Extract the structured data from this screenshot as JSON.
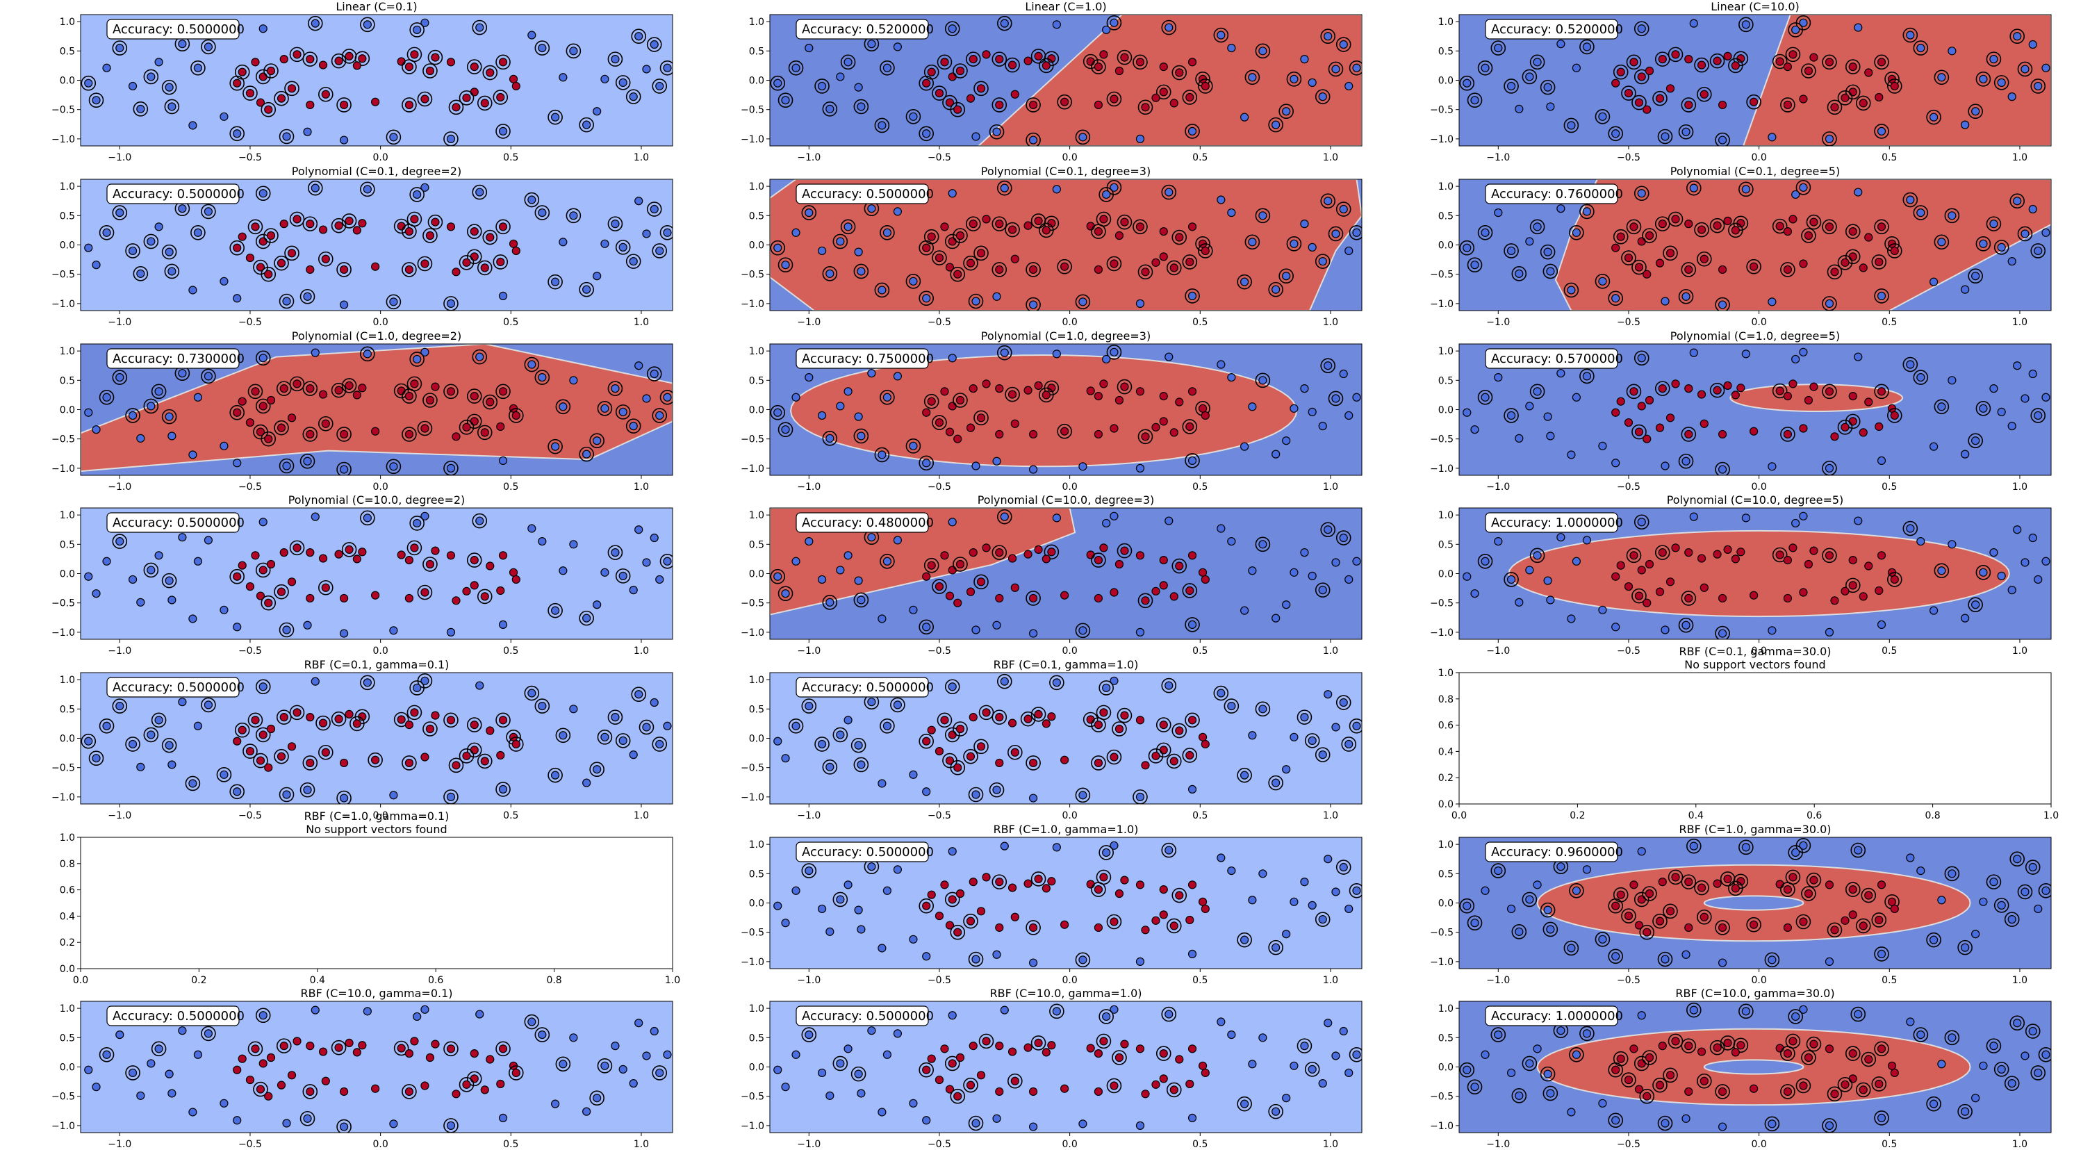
{
  "figure": {
    "colors": {
      "blue_region": "#6f89dd",
      "light_region": "#a3bcfb",
      "red_region": "#d5605a",
      "boundary": "#dddddd",
      "red_point": "#b40426",
      "blue_point": "#4a6ee0",
      "edge": "#000000"
    },
    "panel_ticks": {
      "x": [
        "−1.0",
        "−0.5",
        "0.0",
        "0.5",
        "1.0"
      ],
      "y": [
        "−1.0",
        "−0.5",
        "0.0",
        "0.5",
        "1.0"
      ],
      "empty_x": [
        "0.0",
        "0.2",
        "0.4",
        "0.6",
        "0.8",
        "1.0"
      ],
      "empty_y": [
        "0.0",
        "0.2",
        "0.4",
        "0.6",
        "0.8",
        "1.0"
      ]
    }
  },
  "chart_data": [
    {
      "type": "scatter",
      "title": "Linear (C=0.1)",
      "annotation": "Accuracy: 0.5000000",
      "xlim": [
        -1.15,
        1.12
      ],
      "ylim": [
        -1.12,
        1.12
      ],
      "region": "light",
      "support_vectors": "many"
    },
    {
      "type": "scatter",
      "title": "Linear (C=1.0)",
      "annotation": "Accuracy: 0.5200000",
      "xlim": [
        -1.15,
        1.12
      ],
      "ylim": [
        -1.12,
        1.12
      ],
      "region": "linear-1",
      "support_vectors": "many"
    },
    {
      "type": "scatter",
      "title": "Linear (C=10.0)",
      "annotation": "Accuracy: 0.5200000",
      "xlim": [
        -1.15,
        1.12
      ],
      "ylim": [
        -1.12,
        1.12
      ],
      "region": "linear-10",
      "support_vectors": "many"
    },
    {
      "type": "scatter",
      "title": "Polynomial (C=0.1, degree=2)",
      "annotation": "Accuracy: 0.5000000",
      "xlim": [
        -1.15,
        1.12
      ],
      "ylim": [
        -1.12,
        1.12
      ],
      "region": "light",
      "support_vectors": "many"
    },
    {
      "type": "scatter",
      "title": "Polynomial (C=0.1, degree=3)",
      "annotation": "Accuracy: 0.5000000",
      "xlim": [
        -1.15,
        1.12
      ],
      "ylim": [
        -1.12,
        1.12
      ],
      "region": "poly-3-wide",
      "support_vectors": "many"
    },
    {
      "type": "scatter",
      "title": "Polynomial (C=0.1, degree=5)",
      "annotation": "Accuracy: 0.7600000",
      "xlim": [
        -1.15,
        1.12
      ],
      "ylim": [
        -1.12,
        1.12
      ],
      "region": "poly-5-band",
      "support_vectors": "many"
    },
    {
      "type": "scatter",
      "title": "Polynomial (C=1.0, degree=2)",
      "annotation": "Accuracy: 0.7300000",
      "xlim": [
        -1.15,
        1.12
      ],
      "ylim": [
        -1.12,
        1.12
      ],
      "region": "poly-2-tilt",
      "support_vectors": "many"
    },
    {
      "type": "scatter",
      "title": "Polynomial (C=1.0, degree=3)",
      "annotation": "Accuracy: 0.7500000",
      "xlim": [
        -1.15,
        1.12
      ],
      "ylim": [
        -1.12,
        1.12
      ],
      "region": "ellipse-a",
      "support_vectors": "some"
    },
    {
      "type": "scatter",
      "title": "Polynomial (C=1.0, degree=5)",
      "annotation": "Accuracy: 0.5700000",
      "xlim": [
        -1.15,
        1.12
      ],
      "ylim": [
        -1.12,
        1.12
      ],
      "region": "ellipse-thin",
      "support_vectors": "some"
    },
    {
      "type": "scatter",
      "title": "Polynomial (C=10.0, degree=2)",
      "annotation": "Accuracy: 0.5000000",
      "xlim": [
        -1.15,
        1.12
      ],
      "ylim": [
        -1.12,
        1.12
      ],
      "region": "light",
      "support_vectors": "some"
    },
    {
      "type": "scatter",
      "title": "Polynomial (C=10.0, degree=3)",
      "annotation": "Accuracy: 0.4800000",
      "xlim": [
        -1.15,
        1.12
      ],
      "ylim": [
        -1.12,
        1.12
      ],
      "region": "wedge",
      "support_vectors": "some"
    },
    {
      "type": "scatter",
      "title": "Polynomial (C=10.0, degree=5)",
      "annotation": "Accuracy: 1.0000000",
      "xlim": [
        -1.15,
        1.12
      ],
      "ylim": [
        -1.12,
        1.12
      ],
      "region": "ellipse-b",
      "support_vectors": "few"
    },
    {
      "type": "scatter",
      "title": "RBF (C=0.1, gamma=0.1)",
      "annotation": "Accuracy: 0.5000000",
      "xlim": [
        -1.15,
        1.12
      ],
      "ylim": [
        -1.12,
        1.12
      ],
      "region": "light",
      "support_vectors": "many"
    },
    {
      "type": "scatter",
      "title": "RBF (C=0.1, gamma=1.0)",
      "annotation": "Accuracy: 0.5000000",
      "xlim": [
        -1.15,
        1.12
      ],
      "ylim": [
        -1.12,
        1.12
      ],
      "region": "light",
      "support_vectors": "many"
    },
    {
      "type": "empty",
      "title": "RBF (C=0.1, gamma=30.0)\nNo support vectors found",
      "xlim": [
        0,
        1
      ],
      "ylim": [
        0,
        1
      ]
    },
    {
      "type": "empty",
      "title": "RBF (C=1.0, gamma=0.1)\nNo support vectors found",
      "xlim": [
        0,
        1
      ],
      "ylim": [
        0,
        1
      ]
    },
    {
      "type": "scatter",
      "title": "RBF (C=1.0, gamma=1.0)",
      "annotation": "Accuracy: 0.5000000",
      "xlim": [
        -1.15,
        1.12
      ],
      "ylim": [
        -1.12,
        1.12
      ],
      "region": "light",
      "support_vectors": "some"
    },
    {
      "type": "scatter",
      "title": "RBF (C=1.0, gamma=30.0)",
      "annotation": "Accuracy: 0.9600000",
      "xlim": [
        -1.15,
        1.12
      ],
      "ylim": [
        -1.12,
        1.12
      ],
      "region": "ring",
      "support_vectors": "many"
    },
    {
      "type": "scatter",
      "title": "RBF (C=10.0, gamma=0.1)",
      "annotation": "Accuracy: 0.5000000",
      "xlim": [
        -1.15,
        1.12
      ],
      "ylim": [
        -1.12,
        1.12
      ],
      "region": "light",
      "support_vectors": "some"
    },
    {
      "type": "scatter",
      "title": "RBF (C=10.0, gamma=1.0)",
      "annotation": "Accuracy: 0.5000000",
      "xlim": [
        -1.15,
        1.12
      ],
      "ylim": [
        -1.12,
        1.12
      ],
      "region": "light",
      "support_vectors": "some"
    },
    {
      "type": "scatter",
      "title": "RBF (C=10.0, gamma=30.0)",
      "annotation": "Accuracy: 1.0000000",
      "xlim": [
        -1.15,
        1.12
      ],
      "ylim": [
        -1.12,
        1.12
      ],
      "region": "ring",
      "support_vectors": "many"
    }
  ],
  "points": {
    "note": "shared dataset drawn in every scatter panel (class 1 = red inner ring, class 0 = blue outer ring)",
    "red": [
      [
        -0.53,
        0.14
      ],
      [
        -0.48,
        0.31
      ],
      [
        -0.45,
        0.06
      ],
      [
        -0.42,
        0.16
      ],
      [
        -0.37,
        0.36
      ],
      [
        -0.32,
        0.44
      ],
      [
        -0.27,
        0.36
      ],
      [
        -0.22,
        0.26
      ],
      [
        -0.16,
        0.33
      ],
      [
        -0.12,
        0.41
      ],
      [
        -0.07,
        0.37
      ],
      [
        0.08,
        0.32
      ],
      [
        0.13,
        0.44
      ],
      [
        0.21,
        0.39
      ],
      [
        0.27,
        0.31
      ],
      [
        0.36,
        0.23
      ],
      [
        0.42,
        0.13
      ],
      [
        0.51,
        0.02
      ],
      [
        0.47,
        0.31
      ],
      [
        -0.55,
        -0.05
      ],
      [
        -0.5,
        -0.22
      ],
      [
        -0.46,
        -0.38
      ],
      [
        -0.38,
        -0.31
      ],
      [
        -0.34,
        -0.14
      ],
      [
        -0.27,
        -0.42
      ],
      [
        -0.21,
        -0.24
      ],
      [
        -0.14,
        -0.42
      ],
      [
        -0.02,
        -0.37
      ],
      [
        0.11,
        -0.42
      ],
      [
        0.17,
        -0.32
      ],
      [
        0.29,
        -0.46
      ],
      [
        0.36,
        -0.2
      ],
      [
        0.4,
        -0.39
      ],
      [
        0.46,
        -0.29
      ],
      [
        0.52,
        -0.1
      ],
      [
        0.19,
        0.16
      ],
      [
        0.11,
        0.23
      ],
      [
        -0.09,
        0.25
      ],
      [
        0.33,
        -0.3
      ],
      [
        -0.43,
        -0.5
      ]
    ],
    "blue": [
      [
        -1.12,
        -0.05
      ],
      [
        -1.05,
        0.21
      ],
      [
        -1.0,
        0.55
      ],
      [
        -0.92,
        -0.49
      ],
      [
        -0.85,
        0.31
      ],
      [
        -0.81,
        -0.12
      ],
      [
        -0.76,
        0.62
      ],
      [
        -0.72,
        -0.77
      ],
      [
        -0.66,
        0.57
      ],
      [
        -0.61,
        0.86
      ],
      [
        -0.55,
        -0.91
      ],
      [
        -0.45,
        0.88
      ],
      [
        -0.36,
        -0.96
      ],
      [
        -0.25,
        0.97
      ],
      [
        -0.14,
        -1.02
      ],
      [
        -0.05,
        0.95
      ],
      [
        0.05,
        -0.97
      ],
      [
        0.17,
        0.98
      ],
      [
        0.27,
        -1.0
      ],
      [
        0.38,
        0.9
      ],
      [
        0.47,
        -0.87
      ],
      [
        0.58,
        0.77
      ],
      [
        0.67,
        -0.63
      ],
      [
        0.74,
        0.5
      ],
      [
        0.83,
        -0.53
      ],
      [
        0.9,
        0.36
      ],
      [
        0.97,
        -0.28
      ],
      [
        1.02,
        0.19
      ],
      [
        1.07,
        -0.1
      ],
      [
        1.1,
        0.21
      ],
      [
        -1.09,
        -0.34
      ],
      [
        -0.95,
        -0.1
      ],
      [
        -0.88,
        0.06
      ],
      [
        -0.7,
        0.21
      ],
      [
        0.86,
        0.02
      ],
      [
        0.93,
        -0.04
      ],
      [
        1.05,
        0.61
      ],
      [
        -0.6,
        -0.62
      ],
      [
        0.62,
        0.55
      ],
      [
        0.79,
        -0.76
      ],
      [
        0.99,
        0.75
      ],
      [
        -0.28,
        -0.88
      ],
      [
        0.14,
        0.86
      ],
      [
        -0.8,
        -0.45
      ],
      [
        0.7,
        0.05
      ]
    ]
  }
}
